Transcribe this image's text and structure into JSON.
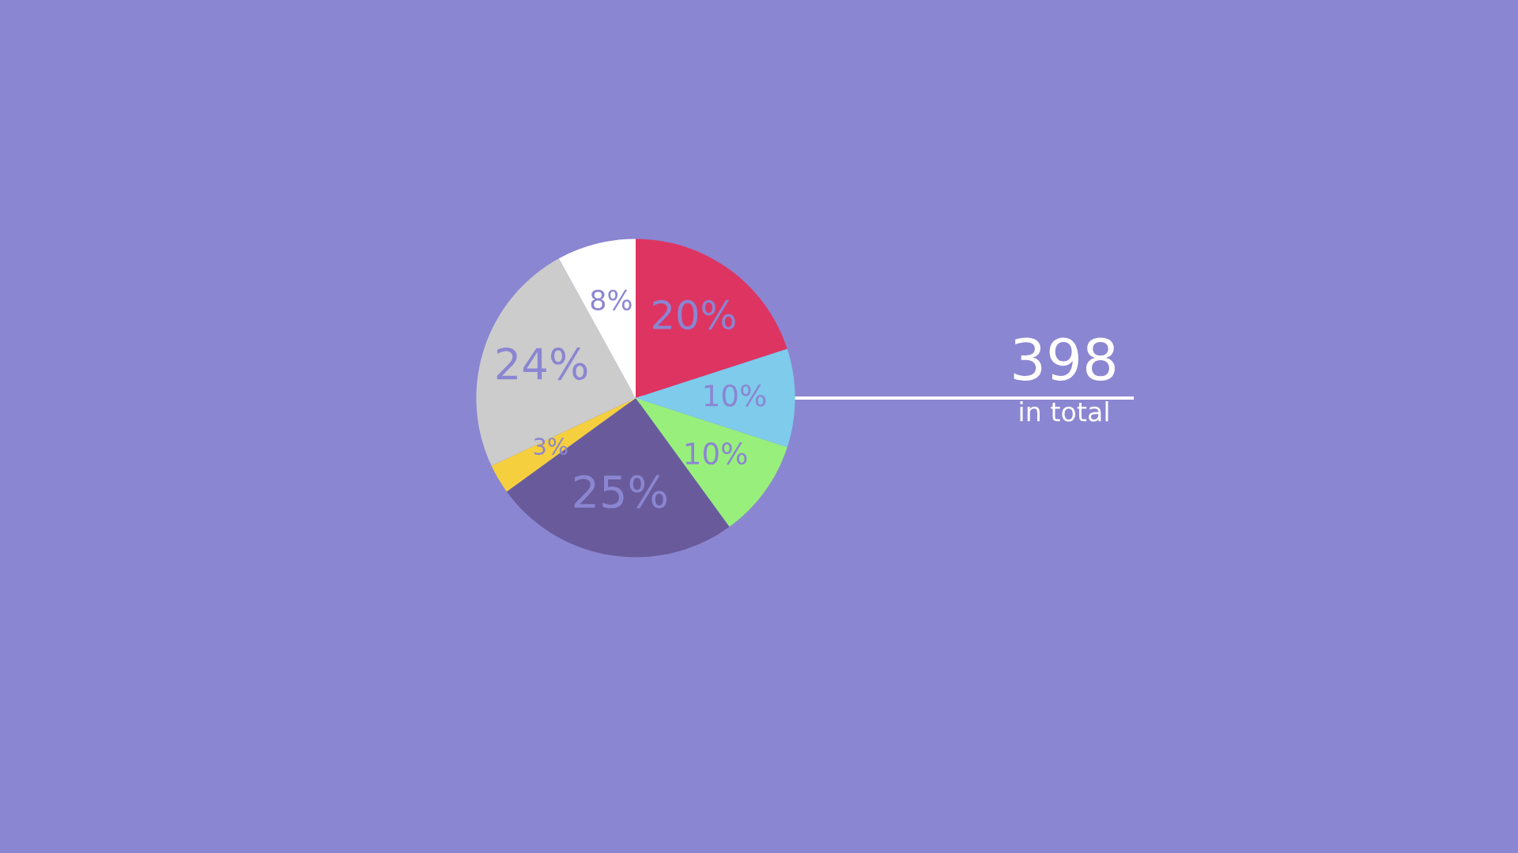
{
  "chart_data": {
    "type": "pie",
    "categories": [
      null,
      null,
      null,
      null,
      null,
      null,
      null
    ],
    "values": [
      20,
      10,
      10,
      25,
      3,
      24,
      8
    ],
    "colors": [
      "#de3462",
      "#7ecbec",
      "#98ef7c",
      "#695b9b",
      "#f5cf3e",
      "#cccccc",
      "#ffffff"
    ],
    "value_labels": [
      "20%",
      "10%",
      "10%",
      "25%",
      "3%",
      "24%",
      "8%"
    ],
    "annotations": [
      "398",
      "in total"
    ]
  }
}
